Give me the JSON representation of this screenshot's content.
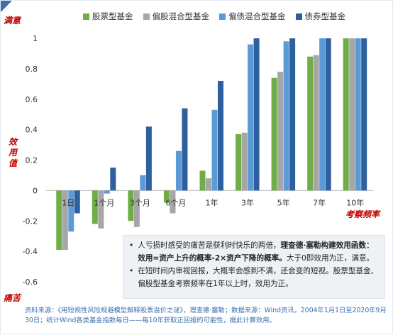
{
  "annotations": {
    "satisfied": "满意",
    "utility": [
      "效",
      "用",
      "值"
    ],
    "pain": "痛苦",
    "frequency": "考察频率"
  },
  "colors": {
    "stock": "#70ad47",
    "partial_stock": "#a6a6a6",
    "partial_bond": "#5b9bd5",
    "bond": "#2e5f9e",
    "annotation": "#c00000",
    "source": "#3b6fb0"
  },
  "chart_data": {
    "type": "bar",
    "categories": [
      "1日",
      "1个月",
      "3个月",
      "6个月",
      "1年",
      "3年",
      "5年",
      "7年",
      "10年"
    ],
    "series": [
      {
        "name": "股票型基金",
        "color": "#70ad47",
        "values": [
          -0.39,
          -0.22,
          -0.2,
          -0.08,
          0.13,
          0.37,
          0.74,
          0.88,
          1.0
        ]
      },
      {
        "name": "偏股混合型基金",
        "color": "#a6a6a6",
        "values": [
          -0.39,
          -0.25,
          -0.24,
          -0.15,
          0.08,
          0.38,
          0.78,
          0.89,
          1.0
        ]
      },
      {
        "name": "偏债混合型基金",
        "color": "#5b9bd5",
        "values": [
          -0.27,
          -0.02,
          0.1,
          0.26,
          0.53,
          0.96,
          0.98,
          1.0,
          1.0
        ]
      },
      {
        "name": "债券型基金",
        "color": "#2e5f9e",
        "values": [
          -0.15,
          0.15,
          0.42,
          0.54,
          0.72,
          1.0,
          1.0,
          1.0,
          1.0
        ]
      }
    ],
    "ylim": [
      -0.6,
      1.0
    ],
    "yticks": [
      "-0.6",
      "-0.4",
      "-0.2",
      "0",
      "0.2",
      "0.4",
      "0.6",
      "0.8",
      "1"
    ],
    "grid": false,
    "legend": "top"
  },
  "notes": [
    {
      "text": "人亏损时感受的痛苦是获利时快乐的两倍，",
      "bold": "理查德·塞勒构建效用函数：效用=资产上升的概率-2×资产下降的概率。",
      "tail": "大于0即效用为正，满意。"
    },
    {
      "text": "在短时间内审视回报，大概率会感到不满，还会变的短视。股票型基金、偏股型基金考察频率在1年以上时，效用为正。",
      "bold": "",
      "tail": ""
    }
  ],
  "source": "资料来源：《用短视性风险规避模型解释股票溢价之谜》，理查德·塞勒；数据来源：Wind资讯，2004年1月1日至2020年9月30日；统计Wind各类基金指数每日——每10年获取正回报的可能性，据此计算效用。"
}
